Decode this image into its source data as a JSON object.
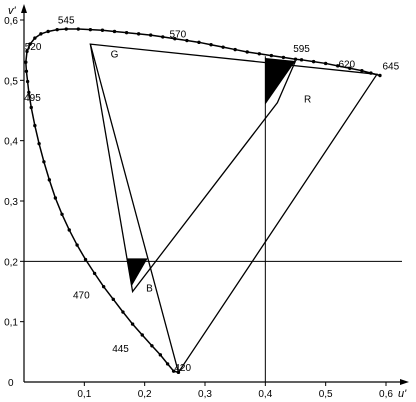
{
  "chart_data": {
    "type": "scatter",
    "xlabel": "u'",
    "ylabel": "v'",
    "xlim": [
      0,
      0.6
    ],
    "ylim": [
      0,
      0.6
    ],
    "x_ticks": [
      {
        "value": 0.1,
        "label": "0,1"
      },
      {
        "value": 0.2,
        "label": "0,2"
      },
      {
        "value": 0.3,
        "label": "0,3"
      },
      {
        "value": 0.4,
        "label": "0,4"
      },
      {
        "value": 0.5,
        "label": "0,5"
      },
      {
        "value": 0.6,
        "label": "0,6"
      }
    ],
    "y_ticks": [
      {
        "value": 0.1,
        "label": "0,1"
      },
      {
        "value": 0.2,
        "label": "0,2"
      },
      {
        "value": 0.3,
        "label": "0,3"
      },
      {
        "value": 0.4,
        "label": "0,4"
      },
      {
        "value": 0.5,
        "label": "0,5"
      },
      {
        "value": 0.6,
        "label": "0,6"
      }
    ],
    "origin_label": "0",
    "spectral_locus": [
      [
        0.59,
        0.508
      ],
      [
        0.575,
        0.512
      ],
      [
        0.56,
        0.516
      ],
      [
        0.54,
        0.52
      ],
      [
        0.52,
        0.524
      ],
      [
        0.5,
        0.528
      ],
      [
        0.48,
        0.531
      ],
      [
        0.46,
        0.534
      ],
      [
        0.45,
        0.535
      ],
      [
        0.43,
        0.538
      ],
      [
        0.41,
        0.541
      ],
      [
        0.39,
        0.544
      ],
      [
        0.37,
        0.547
      ],
      [
        0.35,
        0.551
      ],
      [
        0.33,
        0.555
      ],
      [
        0.31,
        0.559
      ],
      [
        0.29,
        0.563
      ],
      [
        0.27,
        0.566
      ],
      [
        0.25,
        0.569
      ],
      [
        0.23,
        0.572
      ],
      [
        0.21,
        0.575
      ],
      [
        0.19,
        0.577
      ],
      [
        0.17,
        0.579
      ],
      [
        0.15,
        0.581
      ],
      [
        0.13,
        0.583
      ],
      [
        0.11,
        0.584
      ],
      [
        0.09,
        0.585
      ],
      [
        0.07,
        0.585
      ],
      [
        0.055,
        0.584
      ],
      [
        0.04,
        0.581
      ],
      [
        0.028,
        0.577
      ],
      [
        0.018,
        0.57
      ],
      [
        0.01,
        0.56
      ],
      [
        0.005,
        0.548
      ],
      [
        0.003,
        0.53
      ],
      [
        0.004,
        0.515
      ],
      [
        0.006,
        0.498
      ],
      [
        0.008,
        0.48
      ],
      [
        0.012,
        0.455
      ],
      [
        0.018,
        0.425
      ],
      [
        0.025,
        0.395
      ],
      [
        0.033,
        0.365
      ],
      [
        0.042,
        0.335
      ],
      [
        0.052,
        0.305
      ],
      [
        0.063,
        0.278
      ],
      [
        0.075,
        0.252
      ],
      [
        0.088,
        0.227
      ],
      [
        0.102,
        0.203
      ],
      [
        0.117,
        0.18
      ],
      [
        0.132,
        0.158
      ],
      [
        0.148,
        0.137
      ],
      [
        0.164,
        0.116
      ],
      [
        0.18,
        0.096
      ],
      [
        0.196,
        0.078
      ],
      [
        0.212,
        0.06
      ],
      [
        0.226,
        0.045
      ],
      [
        0.238,
        0.03
      ],
      [
        0.248,
        0.018
      ],
      [
        0.256,
        0.016
      ]
    ],
    "purple_line": [
      [
        0.256,
        0.016
      ],
      [
        0.59,
        0.508
      ]
    ],
    "wavelength_labels": [
      {
        "text": "545",
        "u": 0.07,
        "v": 0.594
      },
      {
        "text": "570",
        "u": 0.255,
        "v": 0.571
      },
      {
        "text": "520",
        "u": 0.015,
        "v": 0.55
      },
      {
        "text": "G",
        "u": 0.15,
        "v": 0.538
      },
      {
        "text": "595",
        "u": 0.46,
        "v": 0.547
      },
      {
        "text": "620",
        "u": 0.535,
        "v": 0.521
      },
      {
        "text": "645",
        "u": 0.608,
        "v": 0.518
      },
      {
        "text": "495",
        "u": 0.014,
        "v": 0.466
      },
      {
        "text": "R",
        "u": 0.47,
        "v": 0.463
      },
      {
        "text": "B",
        "u": 0.208,
        "v": 0.15
      },
      {
        "text": "470",
        "u": 0.095,
        "v": 0.138
      },
      {
        "text": "445",
        "u": 0.16,
        "v": 0.05
      },
      {
        "text": "420",
        "u": 0.263,
        "v": 0.018
      }
    ],
    "primaries": {
      "G": [
        0.11,
        0.56
      ],
      "R": [
        0.45,
        0.532
      ],
      "B": [
        0.18,
        0.15
      ]
    },
    "outer_triangle": [
      [
        0.11,
        0.56
      ],
      [
        0.585,
        0.51
      ],
      [
        0.256,
        0.016
      ]
    ],
    "filled_triangles": [
      [
        [
          0.4,
          0.537
        ],
        [
          0.45,
          0.532
        ],
        [
          0.4,
          0.46
        ]
      ],
      [
        [
          0.17,
          0.205
        ],
        [
          0.205,
          0.205
        ],
        [
          0.178,
          0.158
        ]
      ]
    ],
    "reference_lines": {
      "vertical_u": 0.4,
      "horizontal_v": 0.2
    }
  }
}
